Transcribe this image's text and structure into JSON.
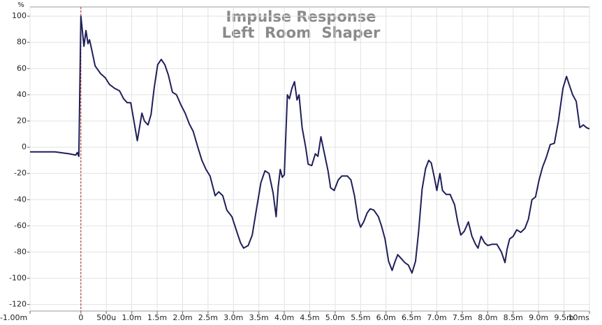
{
  "chart_data": {
    "type": "line",
    "title": "Impulse Response",
    "subtitle": "Left  Room  Shaper",
    "y_label": "%",
    "xlim": [
      -1,
      10
    ],
    "ylim": [
      -125,
      107
    ],
    "xticks": [
      {
        "value": -1,
        "label": "-1.00m"
      },
      0,
      {
        "value": 0.5,
        "label": "500u"
      },
      {
        "value": 1,
        "label": "1.0m"
      },
      {
        "value": 1.5,
        "label": "1.5m"
      },
      {
        "value": 2,
        "label": "2.0m"
      },
      {
        "value": 2.5,
        "label": "2.5m"
      },
      {
        "value": 3,
        "label": "3.0m"
      },
      {
        "value": 3.5,
        "label": "3.5m"
      },
      {
        "value": 4,
        "label": "4.0m"
      },
      {
        "value": 4.5,
        "label": "4.5m"
      },
      {
        "value": 5,
        "label": "5.0m"
      },
      {
        "value": 5.5,
        "label": "5.5m"
      },
      {
        "value": 6,
        "label": "6.0m"
      },
      {
        "value": 6.5,
        "label": "6.5m"
      },
      {
        "value": 7,
        "label": "7.0m"
      },
      {
        "value": 7.5,
        "label": "7.5m"
      },
      {
        "value": 8,
        "label": "8.0m"
      },
      {
        "value": 8.5,
        "label": "8.5m"
      },
      {
        "value": 9,
        "label": "9.0m"
      },
      {
        "value": 9.5,
        "label": "9.5m"
      },
      {
        "value": 10,
        "label": "10ms"
      }
    ],
    "yticks": [
      100,
      80,
      60,
      40,
      20,
      0,
      -20,
      -40,
      -60,
      -80,
      -100,
      -120
    ],
    "grid": true,
    "marker_color": "#b22222",
    "x": [
      -1.0,
      -0.51,
      -0.23,
      -0.1,
      -0.07,
      -0.04,
      0,
      0.06,
      0.1,
      0.14,
      0.17,
      0.21,
      0.28,
      0.39,
      0.48,
      0.56,
      0.66,
      0.76,
      0.84,
      0.91,
      0.98,
      1.03,
      1.11,
      1.2,
      1.25,
      1.32,
      1.38,
      1.44,
      1.51,
      1.58,
      1.65,
      1.72,
      1.8,
      1.88,
      1.97,
      2.05,
      2.13,
      2.21,
      2.3,
      2.38,
      2.46,
      2.54,
      2.64,
      2.71,
      2.79,
      2.87,
      2.97,
      3.07,
      3.14,
      3.2,
      3.29,
      3.37,
      3.45,
      3.54,
      3.62,
      3.7,
      3.78,
      3.84,
      3.88,
      3.92,
      3.96,
      4.0,
      4.06,
      4.1,
      4.15,
      4.2,
      4.25,
      4.29,
      4.35,
      4.42,
      4.47,
      4.54,
      4.61,
      4.66,
      4.72,
      4.79,
      4.86,
      4.91,
      4.98,
      5.06,
      5.13,
      5.24,
      5.31,
      5.38,
      5.45,
      5.5,
      5.56,
      5.63,
      5.69,
      5.76,
      5.85,
      5.91,
      5.98,
      6.05,
      6.12,
      6.18,
      6.23,
      6.3,
      6.37,
      6.44,
      6.51,
      6.58,
      6.64,
      6.71,
      6.78,
      6.84,
      6.89,
      6.95,
      7.0,
      7.06,
      7.11,
      7.18,
      7.26,
      7.35,
      7.41,
      7.47,
      7.54,
      7.62,
      7.69,
      7.76,
      7.81,
      7.87,
      7.94,
      8.0,
      8.09,
      8.18,
      8.27,
      8.34,
      8.38,
      8.43,
      8.5,
      8.57,
      8.65,
      8.73,
      8.8,
      8.87,
      8.94,
      9.01,
      9.08,
      9.15,
      9.23,
      9.31,
      9.39,
      9.48,
      9.55,
      9.6,
      9.67,
      9.74,
      9.81,
      9.88,
      9.94,
      10.0
    ],
    "series": [
      {
        "name": "Left Room Shaper",
        "color": "#1f1f5a",
        "values": [
          -3.5,
          -3.5,
          -5,
          -6,
          -4,
          -7,
          100,
          77,
          89,
          79,
          82,
          75,
          62,
          56,
          53,
          48,
          45,
          43,
          37,
          34,
          34,
          23,
          5,
          26,
          20,
          17,
          25,
          45,
          63,
          67,
          63,
          55,
          42,
          40,
          32,
          26,
          18,
          12,
          0,
          -10,
          -17,
          -22,
          -37,
          -34,
          -37,
          -48,
          -53,
          -65,
          -73,
          -77,
          -75,
          -67,
          -48,
          -27,
          -18,
          -20,
          -35,
          -53,
          -30,
          -17,
          -23,
          -21,
          40,
          37,
          45,
          50,
          36,
          40,
          15,
          0,
          -13,
          -14,
          -5,
          -7,
          8,
          -5,
          -18,
          -31,
          -33,
          -25,
          -22,
          -22,
          -25,
          -37,
          -55,
          -61,
          -57,
          -50,
          -47,
          -48,
          -53,
          -60,
          -70,
          -87,
          -94,
          -87,
          -82,
          -85,
          -88,
          -90,
          -96,
          -87,
          -65,
          -32,
          -16,
          -10,
          -12,
          -23,
          -33,
          -20,
          -33,
          -36,
          -36,
          -44,
          -57,
          -67,
          -64,
          -57,
          -68,
          -74,
          -77,
          -68,
          -73,
          -75,
          -74,
          -74,
          -80,
          -88,
          -78,
          -70,
          -68,
          -63,
          -65,
          -62,
          -55,
          -40,
          -38,
          -25,
          -15,
          -8,
          2,
          3,
          20,
          45,
          54,
          48,
          40,
          35,
          15,
          17,
          15,
          14
        ]
      }
    ]
  }
}
